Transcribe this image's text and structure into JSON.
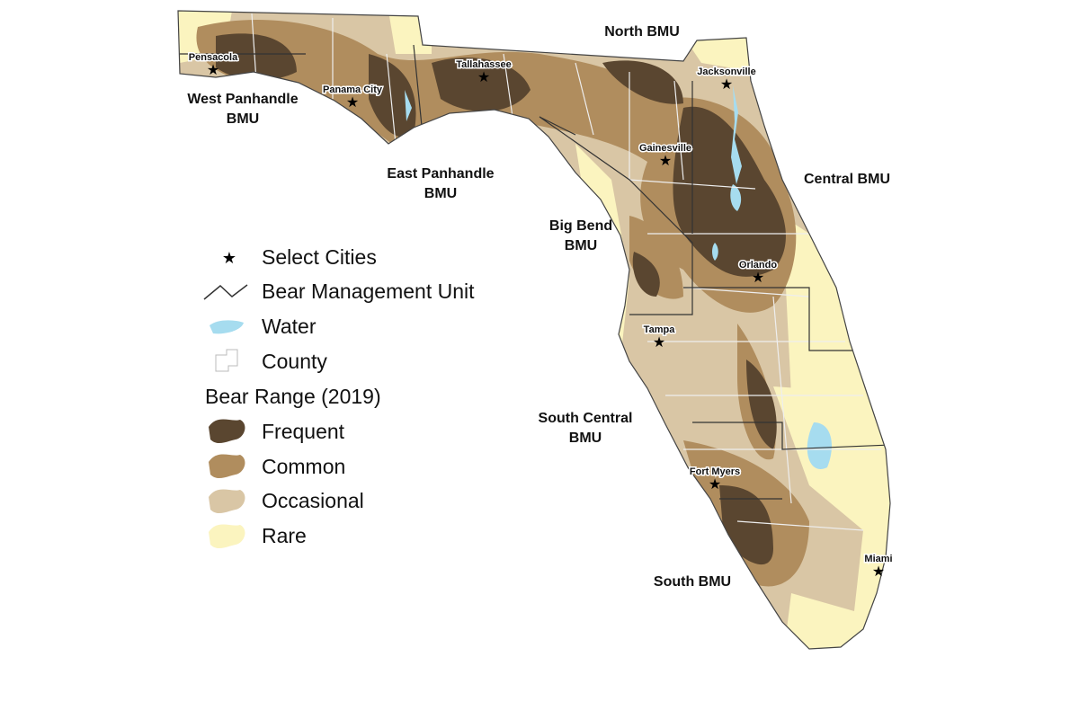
{
  "map": {
    "bmus": [
      {
        "lines": [
          "North BMU"
        ]
      },
      {
        "lines": [
          "West Panhandle",
          "BMU"
        ]
      },
      {
        "lines": [
          "East Panhandle",
          "BMU"
        ]
      },
      {
        "lines": [
          "Central BMU"
        ]
      },
      {
        "lines": [
          "Big Bend",
          "BMU"
        ]
      },
      {
        "lines": [
          "South Central",
          "BMU"
        ]
      },
      {
        "lines": [
          "South BMU"
        ]
      }
    ],
    "cities": [
      "Pensacola",
      "Panama City",
      "Tallahassee",
      "Jacksonville",
      "Gainesville",
      "Orlando",
      "Tampa",
      "Fort Myers",
      "Miami"
    ]
  },
  "legend": {
    "items": [
      "Select Cities",
      "Bear Management Unit",
      "Water",
      "County"
    ],
    "range_title": "Bear Range (2019)",
    "range_items": [
      "Frequent",
      "Common",
      "Occasional",
      "Rare"
    ]
  }
}
